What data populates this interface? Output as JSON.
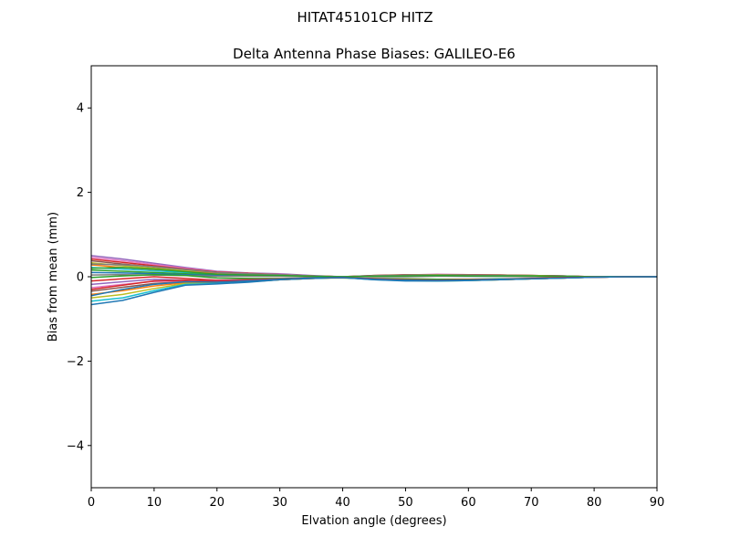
{
  "figure": {
    "suptitle": "HITAT45101CP    HITZ"
  },
  "chart_data": {
    "type": "line",
    "title": "Delta Antenna Phase Biases: GALILEO-E6",
    "xlabel": "Elvation angle (degrees)",
    "ylabel": "Bias from mean (mm)",
    "xlim": [
      0,
      90
    ],
    "ylim": [
      -5,
      5
    ],
    "xticks": [
      0,
      10,
      20,
      30,
      40,
      50,
      60,
      70,
      80,
      90
    ],
    "yticks": [
      -4,
      -2,
      0,
      2,
      4
    ],
    "ytick_labels": [
      "−4",
      "−2",
      "0",
      "2",
      "4"
    ],
    "grid": false,
    "legend": "none",
    "x": [
      0,
      5,
      10,
      15,
      20,
      25,
      30,
      35,
      40,
      45,
      50,
      55,
      60,
      65,
      70,
      75,
      80,
      85,
      90
    ],
    "series": [
      {
        "color": "#9467bd",
        "values": [
          0.5,
          0.42,
          0.32,
          0.22,
          0.13,
          0.09,
          0.07,
          0.03,
          0.0,
          0.02,
          0.04,
          0.05,
          0.04,
          0.04,
          0.03,
          0.02,
          0.0,
          0.0,
          0.0
        ]
      },
      {
        "color": "#e377c2",
        "values": [
          0.46,
          0.38,
          0.29,
          0.2,
          0.12,
          0.08,
          0.06,
          0.02,
          0.0,
          0.02,
          0.04,
          0.06,
          0.05,
          0.04,
          0.03,
          0.02,
          0.0,
          0.0,
          0.0
        ]
      },
      {
        "color": "#d62728",
        "values": [
          0.42,
          0.34,
          0.26,
          0.18,
          0.11,
          0.08,
          0.05,
          0.02,
          0.0,
          0.03,
          0.05,
          0.05,
          0.05,
          0.04,
          0.03,
          0.02,
          0.0,
          0.0,
          0.0
        ]
      },
      {
        "color": "#8c564b",
        "values": [
          0.38,
          0.3,
          0.23,
          0.16,
          0.1,
          0.07,
          0.05,
          0.02,
          0.0,
          0.03,
          0.04,
          0.05,
          0.04,
          0.04,
          0.03,
          0.02,
          0.0,
          0.0,
          0.0
        ]
      },
      {
        "color": "#bcbd22",
        "values": [
          0.33,
          0.26,
          0.2,
          0.14,
          0.09,
          0.06,
          0.04,
          0.02,
          0.0,
          0.02,
          0.04,
          0.05,
          0.04,
          0.03,
          0.03,
          0.01,
          0.0,
          0.0,
          0.0
        ]
      },
      {
        "color": "#ff7f0e",
        "values": [
          0.28,
          0.22,
          0.17,
          0.12,
          0.08,
          0.05,
          0.04,
          0.01,
          0.0,
          0.02,
          0.03,
          0.04,
          0.03,
          0.03,
          0.02,
          0.01,
          0.0,
          0.0,
          0.0
        ]
      },
      {
        "color": "#17becf",
        "values": [
          0.22,
          0.18,
          0.14,
          0.1,
          0.06,
          0.04,
          0.03,
          0.01,
          0.0,
          0.02,
          0.03,
          0.03,
          0.03,
          0.02,
          0.02,
          0.01,
          0.0,
          0.0,
          0.0
        ]
      },
      {
        "color": "#2ca02c",
        "values": [
          0.16,
          0.13,
          0.1,
          0.07,
          0.04,
          0.03,
          0.02,
          0.01,
          0.0,
          0.01,
          0.02,
          0.02,
          0.02,
          0.02,
          0.01,
          0.01,
          0.0,
          0.0,
          0.0
        ]
      },
      {
        "color": "#1f77b4",
        "values": [
          0.1,
          0.09,
          0.07,
          0.05,
          0.03,
          0.02,
          0.02,
          0.0,
          0.0,
          0.01,
          0.01,
          0.02,
          0.01,
          0.01,
          0.01,
          0.0,
          0.0,
          0.0,
          0.0
        ]
      },
      {
        "color": "#7f7f7f",
        "values": [
          0.04,
          0.05,
          0.04,
          0.03,
          0.01,
          0.01,
          0.01,
          0.0,
          0.0,
          0.0,
          0.0,
          0.01,
          0.01,
          0.01,
          0.0,
          0.0,
          0.0,
          0.0,
          0.0
        ]
      },
      {
        "color": "#2ca02c",
        "values": [
          -0.02,
          0.02,
          0.05,
          0.03,
          -0.03,
          -0.04,
          -0.04,
          -0.03,
          -0.03,
          -0.04,
          -0.05,
          -0.06,
          -0.06,
          -0.05,
          -0.04,
          -0.02,
          -0.01,
          0.0,
          0.0
        ]
      },
      {
        "color": "#d62728",
        "values": [
          -0.1,
          -0.05,
          0.0,
          -0.04,
          -0.08,
          -0.07,
          -0.05,
          -0.03,
          -0.02,
          -0.05,
          -0.07,
          -0.08,
          -0.07,
          -0.06,
          -0.05,
          -0.03,
          -0.01,
          0.0,
          0.0
        ]
      },
      {
        "color": "#9467bd",
        "values": [
          -0.18,
          -0.12,
          -0.06,
          -0.08,
          -0.1,
          -0.08,
          -0.06,
          -0.03,
          -0.01,
          -0.05,
          -0.08,
          -0.09,
          -0.08,
          -0.06,
          -0.05,
          -0.03,
          -0.01,
          0.0,
          0.0
        ]
      },
      {
        "color": "#e377c2",
        "values": [
          -0.26,
          -0.18,
          -0.11,
          -0.1,
          -0.12,
          -0.1,
          -0.06,
          -0.03,
          -0.02,
          -0.06,
          -0.08,
          -0.08,
          -0.08,
          -0.06,
          -0.05,
          -0.03,
          -0.01,
          0.0,
          0.0
        ]
      },
      {
        "color": "#8c564b",
        "values": [
          -0.34,
          -0.25,
          -0.16,
          -0.12,
          -0.14,
          -0.11,
          -0.07,
          -0.04,
          -0.02,
          -0.06,
          -0.08,
          -0.09,
          -0.08,
          -0.07,
          -0.05,
          -0.03,
          -0.01,
          0.0,
          0.0
        ]
      },
      {
        "color": "#ff7f0e",
        "values": [
          -0.42,
          -0.33,
          -0.22,
          -0.14,
          -0.15,
          -0.12,
          -0.07,
          -0.04,
          -0.02,
          -0.06,
          -0.09,
          -0.09,
          -0.09,
          -0.07,
          -0.05,
          -0.03,
          -0.01,
          0.0,
          0.0
        ]
      },
      {
        "color": "#bcbd22",
        "values": [
          -0.5,
          -0.42,
          -0.28,
          -0.16,
          -0.16,
          -0.12,
          -0.07,
          -0.04,
          -0.02,
          -0.06,
          -0.09,
          -0.1,
          -0.09,
          -0.07,
          -0.05,
          -0.03,
          -0.01,
          0.0,
          0.0
        ]
      },
      {
        "color": "#17becf",
        "values": [
          -0.58,
          -0.5,
          -0.33,
          -0.18,
          -0.16,
          -0.12,
          -0.07,
          -0.04,
          -0.02,
          -0.07,
          -0.09,
          -0.1,
          -0.09,
          -0.07,
          -0.05,
          -0.03,
          -0.01,
          0.0,
          0.0
        ]
      },
      {
        "color": "#1f77b4",
        "values": [
          -0.66,
          -0.56,
          -0.37,
          -0.2,
          -0.17,
          -0.13,
          -0.07,
          -0.04,
          -0.02,
          -0.07,
          -0.1,
          -0.1,
          -0.09,
          -0.07,
          -0.05,
          -0.03,
          -0.01,
          0.0,
          0.0
        ]
      },
      {
        "color": "#7f7f7f",
        "values": [
          0.3,
          0.28,
          0.24,
          0.17,
          0.1,
          0.07,
          0.05,
          0.02,
          0.0,
          0.02,
          0.04,
          0.04,
          0.04,
          0.03,
          0.02,
          0.01,
          0.0,
          0.0,
          0.0
        ]
      },
      {
        "color": "#2ca02c",
        "values": [
          0.2,
          0.22,
          0.18,
          0.12,
          0.06,
          0.04,
          0.03,
          0.01,
          0.0,
          0.01,
          0.02,
          0.03,
          0.02,
          0.02,
          0.02,
          0.01,
          0.0,
          0.0,
          0.0
        ]
      },
      {
        "color": "#d62728",
        "values": [
          -0.3,
          -0.2,
          -0.1,
          -0.08,
          -0.11,
          -0.09,
          -0.06,
          -0.03,
          -0.02,
          -0.05,
          -0.07,
          -0.08,
          -0.07,
          -0.06,
          -0.04,
          -0.02,
          -0.01,
          0.0,
          0.0
        ]
      },
      {
        "color": "#1f77b4",
        "values": [
          -0.45,
          -0.3,
          -0.18,
          -0.12,
          -0.13,
          -0.1,
          -0.06,
          -0.03,
          -0.02,
          -0.06,
          -0.08,
          -0.09,
          -0.08,
          -0.06,
          -0.05,
          -0.03,
          -0.01,
          0.0,
          0.0
        ]
      }
    ]
  }
}
